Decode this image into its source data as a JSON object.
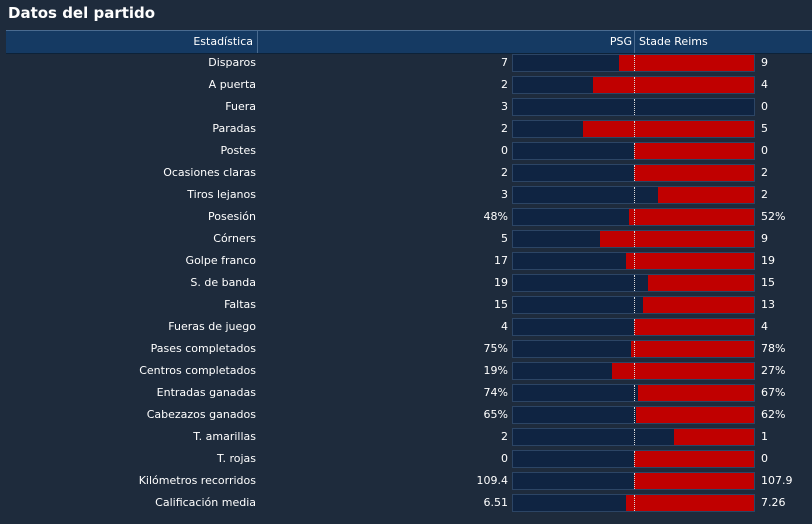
{
  "title": "Datos del partido",
  "header": {
    "stat_label": "Estadística",
    "home_team": "PSG",
    "away_team": "Stade Reims"
  },
  "colors": {
    "home_bar": "#0f2442",
    "away_bar": "#c00000",
    "background": "#1e2b3c",
    "header_bg": "#153a63"
  },
  "stats": [
    {
      "name": "Disparos",
      "home": "7",
      "away": "9",
      "home_share": 0.44
    },
    {
      "name": "A puerta",
      "home": "2",
      "away": "4",
      "home_share": 0.33
    },
    {
      "name": "Fuera",
      "home": "3",
      "away": "0",
      "home_share": 1.0
    },
    {
      "name": "Paradas",
      "home": "2",
      "away": "5",
      "home_share": 0.29
    },
    {
      "name": "Postes",
      "home": "0",
      "away": "0",
      "home_share": 0.5
    },
    {
      "name": "Ocasiones claras",
      "home": "2",
      "away": "2",
      "home_share": 0.5
    },
    {
      "name": "Tiros lejanos",
      "home": "3",
      "away": "2",
      "home_share": 0.6
    },
    {
      "name": "Posesión",
      "home": "48%",
      "away": "52%",
      "home_share": 0.48
    },
    {
      "name": "Córners",
      "home": "5",
      "away": "9",
      "home_share": 0.36
    },
    {
      "name": "Golpe franco",
      "home": "17",
      "away": "19",
      "home_share": 0.47
    },
    {
      "name": "S. de banda",
      "home": "19",
      "away": "15",
      "home_share": 0.56
    },
    {
      "name": "Faltas",
      "home": "15",
      "away": "13",
      "home_share": 0.54
    },
    {
      "name": "Fueras de juego",
      "home": "4",
      "away": "4",
      "home_share": 0.5
    },
    {
      "name": "Pases completados",
      "home": "75%",
      "away": "78%",
      "home_share": 0.49
    },
    {
      "name": "Centros completados",
      "home": "19%",
      "away": "27%",
      "home_share": 0.41
    },
    {
      "name": "Entradas ganadas",
      "home": "74%",
      "away": "67%",
      "home_share": 0.52
    },
    {
      "name": "Cabezazos ganados",
      "home": "65%",
      "away": "62%",
      "home_share": 0.51
    },
    {
      "name": "T. amarillas",
      "home": "2",
      "away": "1",
      "home_share": 0.67
    },
    {
      "name": "T. rojas",
      "home": "0",
      "away": "0",
      "home_share": 0.5
    },
    {
      "name": "Kilómetros recorridos",
      "home": "109.4",
      "away": "107.9",
      "home_share": 0.5
    },
    {
      "name": "Calificación media",
      "home": "6.51",
      "away": "7.26",
      "home_share": 0.47
    }
  ]
}
